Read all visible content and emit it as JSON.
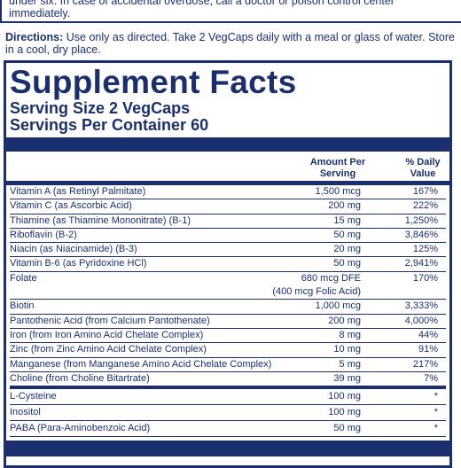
{
  "warning": [
    "under six. In case of accidental overdose, call a doctor or poison control center",
    "immediately."
  ],
  "directions": {
    "label": "Directions:",
    "text": "Use only as directed. Take 2 VegCaps daily with a meal or glass of water. Store in a cool, dry place."
  },
  "facts": {
    "title": "Supplement Facts",
    "serving_size": "Serving Size 2 VegCaps",
    "servings_per_container": "Servings Per Container 60",
    "header": {
      "amount": [
        "Amount Per",
        "Serving"
      ],
      "dv": [
        "% Daily",
        "Value"
      ]
    },
    "rows": [
      {
        "name": "Vitamin A (as Retinyl Palmitate)",
        "amount": [
          "1,500 mcg"
        ],
        "dv": "167%"
      },
      {
        "name": "Vitamin C (as Ascorbic Acid)",
        "amount": [
          "200 mg"
        ],
        "dv": "222%"
      },
      {
        "name": "Thiamine (as Thiamine Mononitrate) (B-1)",
        "amount": [
          "15 mg"
        ],
        "dv": "1,250%"
      },
      {
        "name": "Riboflavin (B-2)",
        "amount": [
          "50 mg"
        ],
        "dv": "3,846%"
      },
      {
        "name": "Niacin (as Niacinamide) (B-3)",
        "amount": [
          "20 mg"
        ],
        "dv": "125%"
      },
      {
        "name": "Vitamin B-6 (as Pyridoxine HCl)",
        "amount": [
          "50 mg"
        ],
        "dv": "2,941%"
      },
      {
        "name": "Folate",
        "amount": [
          "680 mcg DFE",
          "(400 mcg Folic Acid)"
        ],
        "dv": "170%"
      },
      {
        "name": "Biotin",
        "amount": [
          "1,000 mcg"
        ],
        "dv": "3,333%"
      },
      {
        "name": "Pantothenic Acid (from Calcium Pantothenate)",
        "amount": [
          "200 mg"
        ],
        "dv": "4,000%"
      },
      {
        "name": "Iron (from Iron Amino Acid Chelate Complex)",
        "amount": [
          "8 mg"
        ],
        "dv": "44%"
      },
      {
        "name": "Zinc (from Zinc Amino Acid Chelate Complex)",
        "amount": [
          "10 mg"
        ],
        "dv": "91%"
      },
      {
        "name": "Manganese (from Manganese Amino Acid Chelate Complex)",
        "amount": [
          "5 mg"
        ],
        "dv": "217%"
      },
      {
        "name": "Choline (from Choline Bitartrate)",
        "amount": [
          "39 mg"
        ],
        "dv": "7%"
      }
    ],
    "other_rows": [
      {
        "name": "L-Cysteine",
        "amount": [
          "100 mg"
        ],
        "dv": "*"
      },
      {
        "name": "Inositol",
        "amount": [
          "100 mg"
        ],
        "dv": "*"
      },
      {
        "name": "PABA (Para-Aminobenzoic Acid)",
        "amount": [
          "50 mg"
        ],
        "dv": "*"
      }
    ]
  }
}
